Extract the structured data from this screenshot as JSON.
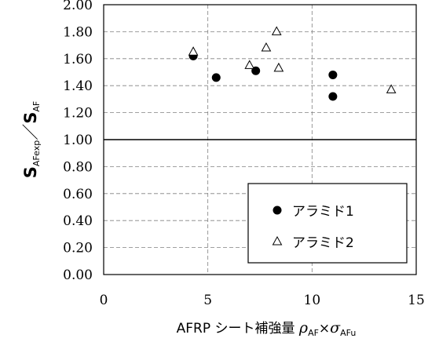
{
  "chart_data": {
    "type": "scatter",
    "x_label": {
      "main": "AFRP シート補強量 ",
      "rho": "ρ",
      "rho_sub": "AF",
      "times": "×",
      "sigma": "σ",
      "sigma_sub": "AFu"
    },
    "y_label": {
      "s1": "S",
      "s1_sub": "AFexp",
      "slash": "／",
      "s2": "S",
      "s2_sub": "AF"
    },
    "xlim": [
      0,
      15
    ],
    "ylim": [
      0,
      2
    ],
    "x_ticks": [
      "0",
      "5",
      "10",
      "15"
    ],
    "y_ticks": [
      "0.00",
      "0.20",
      "0.40",
      "0.60",
      "0.80",
      "1.00",
      "1.20",
      "1.40",
      "1.60",
      "1.80",
      "2.00"
    ],
    "reference_line_y": 1.0,
    "grid": {
      "x_major": true,
      "y_major": true,
      "style": "dashed"
    },
    "legend_position": "bottom-right",
    "series": [
      {
        "name": "アラミド1",
        "marker": "filled-circle",
        "points": [
          {
            "x": 4.3,
            "y": 1.62
          },
          {
            "x": 5.4,
            "y": 1.46
          },
          {
            "x": 7.3,
            "y": 1.51
          },
          {
            "x": 11.0,
            "y": 1.48
          },
          {
            "x": 11.0,
            "y": 1.32
          }
        ]
      },
      {
        "name": "アラミド2",
        "marker": "open-triangle",
        "points": [
          {
            "x": 4.3,
            "y": 1.65
          },
          {
            "x": 7.0,
            "y": 1.55
          },
          {
            "x": 7.8,
            "y": 1.68
          },
          {
            "x": 8.3,
            "y": 1.8
          },
          {
            "x": 8.4,
            "y": 1.53
          },
          {
            "x": 13.8,
            "y": 1.37
          }
        ]
      }
    ]
  },
  "colors": {
    "marker": "#000000",
    "grid": "#808080",
    "background": "#ffffff"
  }
}
